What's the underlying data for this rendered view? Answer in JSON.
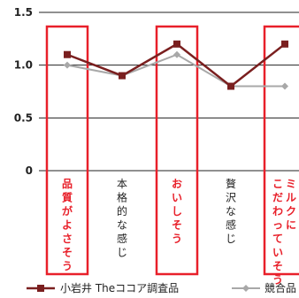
{
  "chart_data": {
    "type": "line",
    "categories": [
      "品質がよさそう",
      "本格的な感じ",
      "おいしそう",
      "贅沢な感じ",
      "ミルクにこだわっていそう"
    ],
    "series": [
      {
        "name": "小岩井 Theココア調査品",
        "values": [
          1.1,
          0.9,
          1.2,
          0.8,
          1.2
        ],
        "color": "#7a1f1f",
        "marker": "square"
      },
      {
        "name": "競合品",
        "values": [
          1.0,
          0.9,
          1.1,
          0.8,
          0.8
        ],
        "color": "#a8a8a8",
        "marker": "diamond"
      }
    ],
    "highlighted_categories": [
      0,
      2,
      4
    ],
    "highlight_color": "#e8202a",
    "yticks": [
      0,
      0.5,
      1.0,
      1.5
    ],
    "ytick_labels": [
      "0",
      "0.5",
      "1.0",
      "1.5"
    ],
    "ylim": [
      0,
      1.5
    ],
    "grid": "horizontal",
    "legend_position": "bottom"
  }
}
